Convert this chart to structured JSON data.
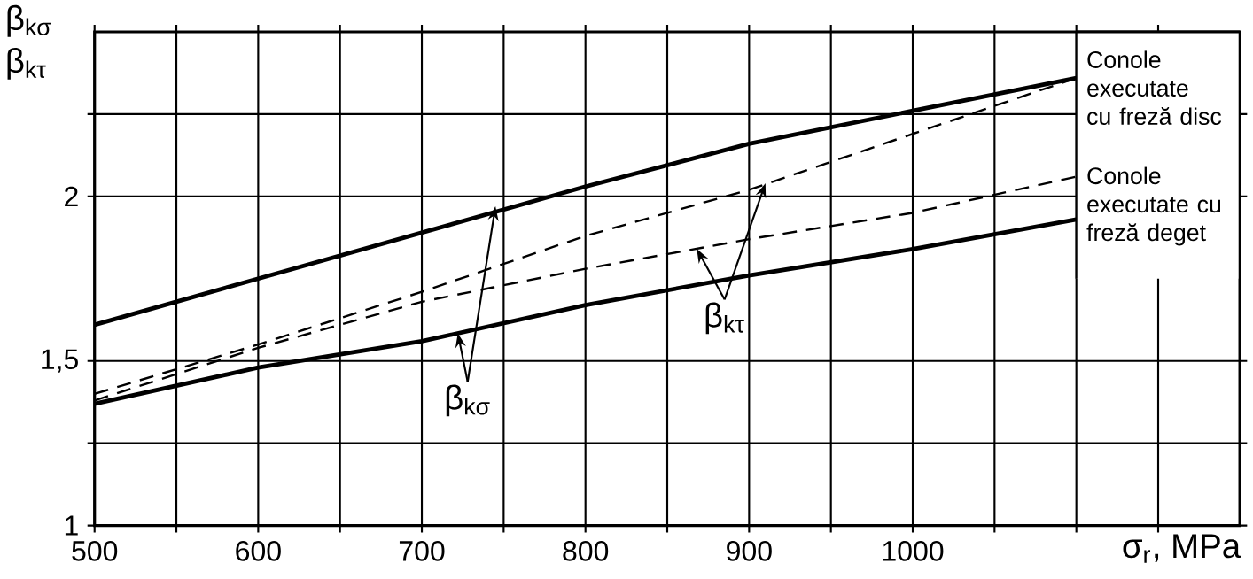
{
  "chart_data": {
    "type": "line",
    "xlabel": "σ$_{r}$, MPa",
    "ylabel": "β$_{kσ}$ β$_{kτ}$",
    "x": [
      500,
      600,
      700,
      800,
      900,
      1000,
      1100
    ],
    "series": [
      {
        "color": "#000000",
        "line_style": "solid",
        "values": [
          1.61,
          1.75,
          1.89,
          2.03,
          2.16,
          2.26,
          2.36
        ]
      },
      {
        "color": "#000000",
        "line_style": "solid",
        "values": [
          1.37,
          1.48,
          1.56,
          1.67,
          1.76,
          1.84,
          1.93
        ]
      },
      {
        "color": "#000000",
        "line_style": "dashed",
        "values": [
          1.4,
          1.55,
          1.71,
          1.88,
          2.02,
          2.19,
          2.36
        ]
      },
      {
        "color": "#000000",
        "line_style": "dashed",
        "values": [
          1.38,
          1.54,
          1.68,
          1.78,
          1.87,
          1.95,
          2.06
        ]
      }
    ],
    "annotations": [
      {
        "text": "β$_{kσ}$",
        "x": 745,
        "y": 1.97
      },
      {
        "text": "β$_{kτ}$",
        "x": 910,
        "y": 2.04
      },
      "Conole executate cu freză disc",
      "Conole executate cu freză deget"
    ],
    "xlim": [
      500,
      1200
    ],
    "ylim": [
      1,
      2.5
    ],
    "xticks": [
      500,
      {
        "value": 550,
        "label": null
      },
      600,
      {
        "value": 650,
        "label": null
      },
      700,
      {
        "value": 750,
        "label": null
      },
      800,
      {
        "value": 850,
        "label": null
      },
      900,
      {
        "value": 950,
        "label": null
      },
      1000,
      {
        "value": 1050,
        "label": null
      },
      {
        "value": 1100,
        "label": null
      },
      {
        "value": 1150,
        "label": null
      }
    ],
    "yticks": [
      1,
      {
        "value": 1.25,
        "label": null
      },
      {
        "value": 1.5,
        "label": "1,5"
      },
      2,
      {
        "value": 2.25,
        "label": null
      }
    ],
    "grid": true,
    "marker": "none"
  }
}
